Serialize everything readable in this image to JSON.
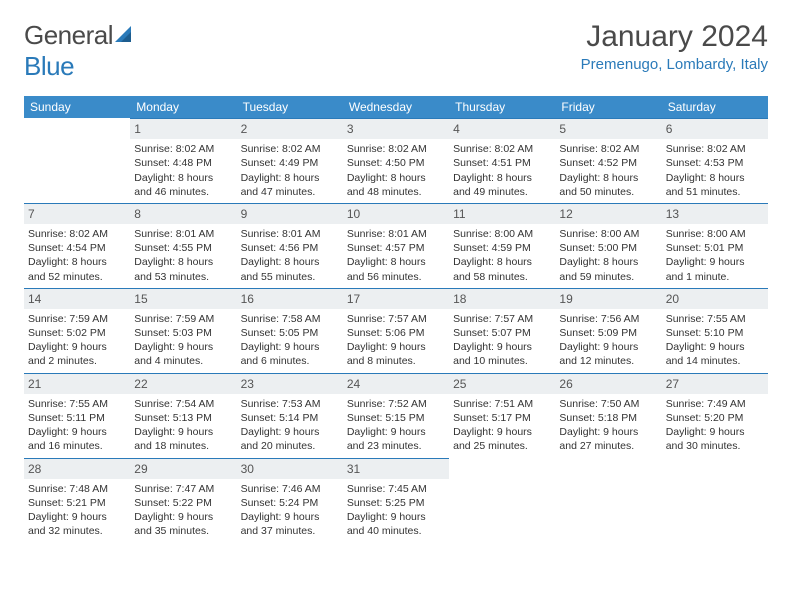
{
  "brand": {
    "part1": "General",
    "part2": "Blue"
  },
  "title": "January 2024",
  "location": "Premenugo, Lombardy, Italy",
  "colors": {
    "header_bg": "#3a8bc9",
    "accent": "#2a7ab9",
    "daynum_bg": "#eceff1",
    "text": "#333333",
    "page_bg": "#ffffff"
  },
  "weekdays": [
    "Sunday",
    "Monday",
    "Tuesday",
    "Wednesday",
    "Thursday",
    "Friday",
    "Saturday"
  ],
  "weeks": [
    [
      null,
      {
        "n": "1",
        "sr": "Sunrise: 8:02 AM",
        "ss": "Sunset: 4:48 PM",
        "d1": "Daylight: 8 hours",
        "d2": "and 46 minutes."
      },
      {
        "n": "2",
        "sr": "Sunrise: 8:02 AM",
        "ss": "Sunset: 4:49 PM",
        "d1": "Daylight: 8 hours",
        "d2": "and 47 minutes."
      },
      {
        "n": "3",
        "sr": "Sunrise: 8:02 AM",
        "ss": "Sunset: 4:50 PM",
        "d1": "Daylight: 8 hours",
        "d2": "and 48 minutes."
      },
      {
        "n": "4",
        "sr": "Sunrise: 8:02 AM",
        "ss": "Sunset: 4:51 PM",
        "d1": "Daylight: 8 hours",
        "d2": "and 49 minutes."
      },
      {
        "n": "5",
        "sr": "Sunrise: 8:02 AM",
        "ss": "Sunset: 4:52 PM",
        "d1": "Daylight: 8 hours",
        "d2": "and 50 minutes."
      },
      {
        "n": "6",
        "sr": "Sunrise: 8:02 AM",
        "ss": "Sunset: 4:53 PM",
        "d1": "Daylight: 8 hours",
        "d2": "and 51 minutes."
      }
    ],
    [
      {
        "n": "7",
        "sr": "Sunrise: 8:02 AM",
        "ss": "Sunset: 4:54 PM",
        "d1": "Daylight: 8 hours",
        "d2": "and 52 minutes."
      },
      {
        "n": "8",
        "sr": "Sunrise: 8:01 AM",
        "ss": "Sunset: 4:55 PM",
        "d1": "Daylight: 8 hours",
        "d2": "and 53 minutes."
      },
      {
        "n": "9",
        "sr": "Sunrise: 8:01 AM",
        "ss": "Sunset: 4:56 PM",
        "d1": "Daylight: 8 hours",
        "d2": "and 55 minutes."
      },
      {
        "n": "10",
        "sr": "Sunrise: 8:01 AM",
        "ss": "Sunset: 4:57 PM",
        "d1": "Daylight: 8 hours",
        "d2": "and 56 minutes."
      },
      {
        "n": "11",
        "sr": "Sunrise: 8:00 AM",
        "ss": "Sunset: 4:59 PM",
        "d1": "Daylight: 8 hours",
        "d2": "and 58 minutes."
      },
      {
        "n": "12",
        "sr": "Sunrise: 8:00 AM",
        "ss": "Sunset: 5:00 PM",
        "d1": "Daylight: 8 hours",
        "d2": "and 59 minutes."
      },
      {
        "n": "13",
        "sr": "Sunrise: 8:00 AM",
        "ss": "Sunset: 5:01 PM",
        "d1": "Daylight: 9 hours",
        "d2": "and 1 minute."
      }
    ],
    [
      {
        "n": "14",
        "sr": "Sunrise: 7:59 AM",
        "ss": "Sunset: 5:02 PM",
        "d1": "Daylight: 9 hours",
        "d2": "and 2 minutes."
      },
      {
        "n": "15",
        "sr": "Sunrise: 7:59 AM",
        "ss": "Sunset: 5:03 PM",
        "d1": "Daylight: 9 hours",
        "d2": "and 4 minutes."
      },
      {
        "n": "16",
        "sr": "Sunrise: 7:58 AM",
        "ss": "Sunset: 5:05 PM",
        "d1": "Daylight: 9 hours",
        "d2": "and 6 minutes."
      },
      {
        "n": "17",
        "sr": "Sunrise: 7:57 AM",
        "ss": "Sunset: 5:06 PM",
        "d1": "Daylight: 9 hours",
        "d2": "and 8 minutes."
      },
      {
        "n": "18",
        "sr": "Sunrise: 7:57 AM",
        "ss": "Sunset: 5:07 PM",
        "d1": "Daylight: 9 hours",
        "d2": "and 10 minutes."
      },
      {
        "n": "19",
        "sr": "Sunrise: 7:56 AM",
        "ss": "Sunset: 5:09 PM",
        "d1": "Daylight: 9 hours",
        "d2": "and 12 minutes."
      },
      {
        "n": "20",
        "sr": "Sunrise: 7:55 AM",
        "ss": "Sunset: 5:10 PM",
        "d1": "Daylight: 9 hours",
        "d2": "and 14 minutes."
      }
    ],
    [
      {
        "n": "21",
        "sr": "Sunrise: 7:55 AM",
        "ss": "Sunset: 5:11 PM",
        "d1": "Daylight: 9 hours",
        "d2": "and 16 minutes."
      },
      {
        "n": "22",
        "sr": "Sunrise: 7:54 AM",
        "ss": "Sunset: 5:13 PM",
        "d1": "Daylight: 9 hours",
        "d2": "and 18 minutes."
      },
      {
        "n": "23",
        "sr": "Sunrise: 7:53 AM",
        "ss": "Sunset: 5:14 PM",
        "d1": "Daylight: 9 hours",
        "d2": "and 20 minutes."
      },
      {
        "n": "24",
        "sr": "Sunrise: 7:52 AM",
        "ss": "Sunset: 5:15 PM",
        "d1": "Daylight: 9 hours",
        "d2": "and 23 minutes."
      },
      {
        "n": "25",
        "sr": "Sunrise: 7:51 AM",
        "ss": "Sunset: 5:17 PM",
        "d1": "Daylight: 9 hours",
        "d2": "and 25 minutes."
      },
      {
        "n": "26",
        "sr": "Sunrise: 7:50 AM",
        "ss": "Sunset: 5:18 PM",
        "d1": "Daylight: 9 hours",
        "d2": "and 27 minutes."
      },
      {
        "n": "27",
        "sr": "Sunrise: 7:49 AM",
        "ss": "Sunset: 5:20 PM",
        "d1": "Daylight: 9 hours",
        "d2": "and 30 minutes."
      }
    ],
    [
      {
        "n": "28",
        "sr": "Sunrise: 7:48 AM",
        "ss": "Sunset: 5:21 PM",
        "d1": "Daylight: 9 hours",
        "d2": "and 32 minutes."
      },
      {
        "n": "29",
        "sr": "Sunrise: 7:47 AM",
        "ss": "Sunset: 5:22 PM",
        "d1": "Daylight: 9 hours",
        "d2": "and 35 minutes."
      },
      {
        "n": "30",
        "sr": "Sunrise: 7:46 AM",
        "ss": "Sunset: 5:24 PM",
        "d1": "Daylight: 9 hours",
        "d2": "and 37 minutes."
      },
      {
        "n": "31",
        "sr": "Sunrise: 7:45 AM",
        "ss": "Sunset: 5:25 PM",
        "d1": "Daylight: 9 hours",
        "d2": "and 40 minutes."
      },
      null,
      null,
      null
    ]
  ]
}
